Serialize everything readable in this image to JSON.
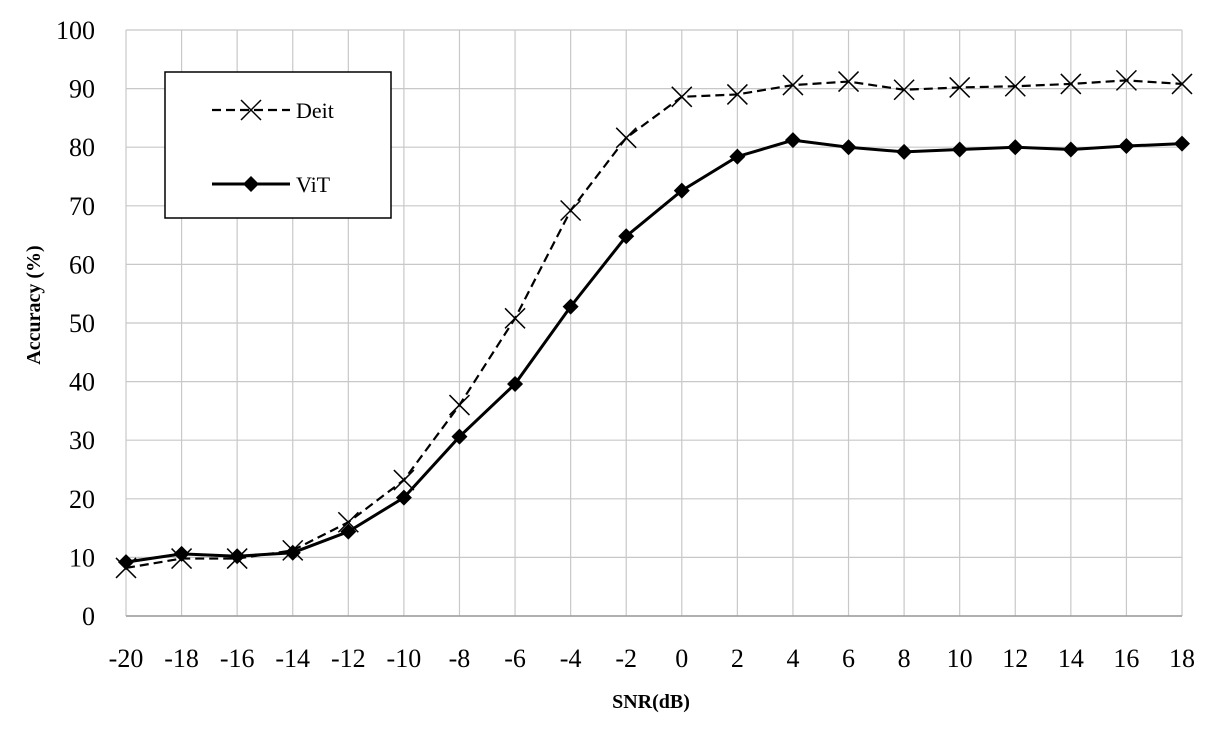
{
  "chart_data": {
    "type": "line",
    "title": "",
    "xlabel": "SNR(dB)",
    "ylabel": "Accuracy (%)",
    "x": [
      -20,
      -18,
      -16,
      -14,
      -12,
      -10,
      -8,
      -6,
      -4,
      -2,
      0,
      2,
      4,
      6,
      8,
      10,
      12,
      14,
      16,
      18
    ],
    "xtick_labels": [
      "-20",
      "-18",
      "-16",
      "-14",
      "-12",
      "-10",
      "-8",
      "-6",
      "-4",
      "-2",
      "0",
      "2",
      "4",
      "6",
      "8",
      "10",
      "12",
      "14",
      "16",
      "18"
    ],
    "ylim": [
      0,
      100
    ],
    "yticks": [
      0,
      10,
      20,
      30,
      40,
      50,
      60,
      70,
      80,
      90,
      100
    ],
    "grid": true,
    "legend_position": "top-left",
    "series": [
      {
        "name": "Deit",
        "style": "dashed",
        "marker": "x",
        "color": "#000000",
        "values": [
          8.2,
          9.8,
          9.8,
          11.2,
          16.0,
          23.2,
          36.0,
          50.8,
          69.2,
          81.6,
          88.6,
          89.0,
          90.6,
          91.2,
          89.8,
          90.2,
          90.4,
          90.8,
          91.4,
          90.8
        ]
      },
      {
        "name": "ViT",
        "style": "solid",
        "marker": "diamond",
        "color": "#000000",
        "values": [
          9.2,
          10.6,
          10.2,
          10.8,
          14.4,
          20.2,
          30.6,
          39.6,
          52.8,
          64.8,
          72.6,
          78.4,
          81.2,
          80.0,
          79.2,
          79.6,
          80.0,
          79.6,
          80.2,
          80.6
        ]
      }
    ]
  }
}
